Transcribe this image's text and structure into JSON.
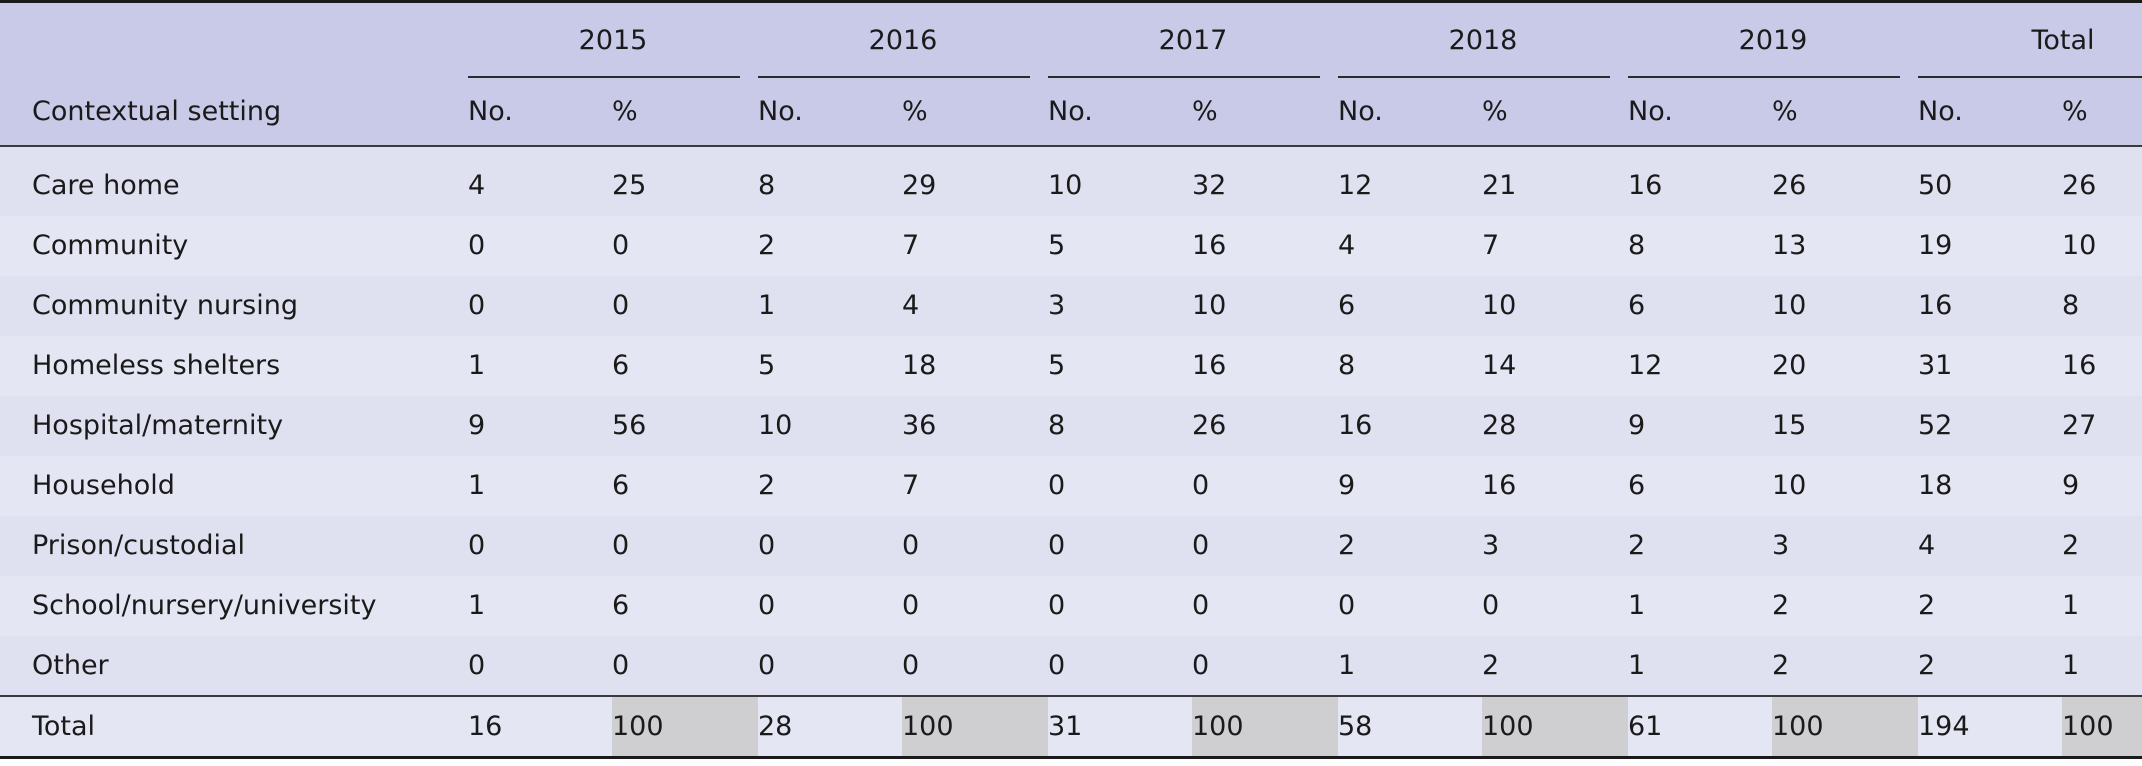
{
  "table": {
    "corner_label": "Contextual setting",
    "years": [
      "2015",
      "2016",
      "2017",
      "2018",
      "2019",
      "Total"
    ],
    "sub_no": "No.",
    "sub_pct": "%",
    "rows": [
      {
        "setting": "Care home",
        "values": [
          [
            "4",
            "25"
          ],
          [
            "8",
            "29"
          ],
          [
            "10",
            "32"
          ],
          [
            "12",
            "21"
          ],
          [
            "16",
            "26"
          ],
          [
            "50",
            "26"
          ]
        ]
      },
      {
        "setting": "Community",
        "values": [
          [
            "0",
            "0"
          ],
          [
            "2",
            "7"
          ],
          [
            "5",
            "16"
          ],
          [
            "4",
            "7"
          ],
          [
            "8",
            "13"
          ],
          [
            "19",
            "10"
          ]
        ]
      },
      {
        "setting": "Community nursing",
        "values": [
          [
            "0",
            "0"
          ],
          [
            "1",
            "4"
          ],
          [
            "3",
            "10"
          ],
          [
            "6",
            "10"
          ],
          [
            "6",
            "10"
          ],
          [
            "16",
            "8"
          ]
        ]
      },
      {
        "setting": "Homeless shelters",
        "values": [
          [
            "1",
            "6"
          ],
          [
            "5",
            "18"
          ],
          [
            "5",
            "16"
          ],
          [
            "8",
            "14"
          ],
          [
            "12",
            "20"
          ],
          [
            "31",
            "16"
          ]
        ]
      },
      {
        "setting": "Hospital/maternity",
        "values": [
          [
            "9",
            "56"
          ],
          [
            "10",
            "36"
          ],
          [
            "8",
            "26"
          ],
          [
            "16",
            "28"
          ],
          [
            "9",
            "15"
          ],
          [
            "52",
            "27"
          ]
        ]
      },
      {
        "setting": "Household",
        "values": [
          [
            "1",
            "6"
          ],
          [
            "2",
            "7"
          ],
          [
            "0",
            "0"
          ],
          [
            "9",
            "16"
          ],
          [
            "6",
            "10"
          ],
          [
            "18",
            "9"
          ]
        ]
      },
      {
        "setting": "Prison/custodial",
        "values": [
          [
            "0",
            "0"
          ],
          [
            "0",
            "0"
          ],
          [
            "0",
            "0"
          ],
          [
            "2",
            "3"
          ],
          [
            "2",
            "3"
          ],
          [
            "4",
            "2"
          ]
        ]
      },
      {
        "setting": "School/nursery/university",
        "values": [
          [
            "1",
            "6"
          ],
          [
            "0",
            "0"
          ],
          [
            "0",
            "0"
          ],
          [
            "0",
            "0"
          ],
          [
            "1",
            "2"
          ],
          [
            "2",
            "1"
          ]
        ]
      },
      {
        "setting": "Other",
        "values": [
          [
            "0",
            "0"
          ],
          [
            "0",
            "0"
          ],
          [
            "0",
            "0"
          ],
          [
            "1",
            "2"
          ],
          [
            "1",
            "2"
          ],
          [
            "2",
            "1"
          ]
        ]
      }
    ],
    "total_row": {
      "setting": "Total",
      "values": [
        [
          "16",
          "100"
        ],
        [
          "28",
          "100"
        ],
        [
          "31",
          "100"
        ],
        [
          "58",
          "100"
        ],
        [
          "61",
          "100"
        ],
        [
          "194",
          "100"
        ]
      ]
    }
  }
}
